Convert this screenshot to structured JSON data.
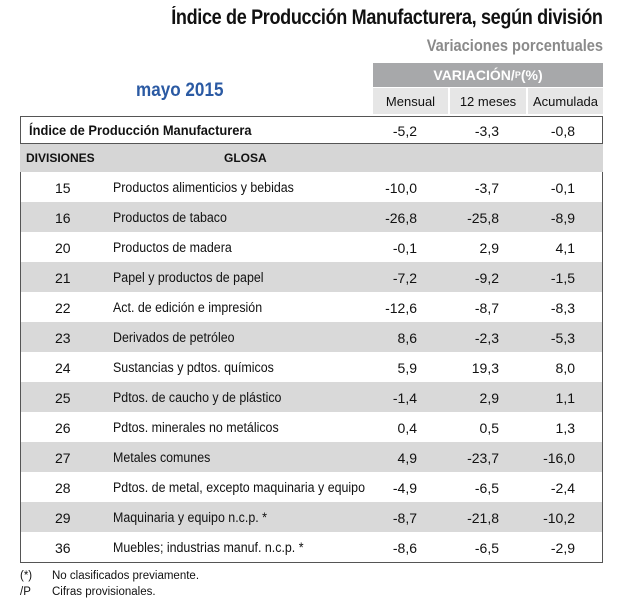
{
  "header": {
    "title": "Índice de Producción Manufacturera, según división",
    "subtitle": "Variaciones porcentuales",
    "period": "mayo 2015",
    "variation_label": "VARIACIÓN/",
    "variation_sup": "P",
    "variation_unit": " (%)",
    "columns": [
      "Mensual",
      "12 meses",
      "Acumulada"
    ]
  },
  "summary": {
    "label": "Índice de Producción Manufacturera",
    "mensual": "-5,2",
    "doce_meses": "-3,3",
    "acumulada": "-0,8"
  },
  "table_header": {
    "divisiones": "DIVISIONES",
    "glosa": "GLOSA"
  },
  "rows": [
    {
      "code": "15",
      "desc": "Productos alimenticios y bebidas",
      "m": "-10,0",
      "a12": "-3,7",
      "ac": "-0,1"
    },
    {
      "code": "16",
      "desc": "Productos de tabaco",
      "m": "-26,8",
      "a12": "-25,8",
      "ac": "-8,9"
    },
    {
      "code": "20",
      "desc": "Productos de madera",
      "m": "-0,1",
      "a12": "2,9",
      "ac": "4,1"
    },
    {
      "code": "21",
      "desc": "Papel y productos de papel",
      "m": "-7,2",
      "a12": "-9,2",
      "ac": "-1,5"
    },
    {
      "code": "22",
      "desc": "Act. de edición e impresión",
      "m": "-12,6",
      "a12": "-8,7",
      "ac": "-8,3"
    },
    {
      "code": "23",
      "desc": "Derivados de petróleo",
      "m": "8,6",
      "a12": "-2,3",
      "ac": "-5,3"
    },
    {
      "code": "24",
      "desc": "Sustancias y pdtos. químicos",
      "m": "5,9",
      "a12": "19,3",
      "ac": "8,0"
    },
    {
      "code": "25",
      "desc": "Pdtos. de caucho y de plástico",
      "m": "-1,4",
      "a12": "2,9",
      "ac": "1,1"
    },
    {
      "code": "26",
      "desc": "Pdtos. minerales no metálicos",
      "m": "0,4",
      "a12": "0,5",
      "ac": "1,3"
    },
    {
      "code": "27",
      "desc": "Metales comunes",
      "m": "4,9",
      "a12": "-23,7",
      "ac": "-16,0"
    },
    {
      "code": "28",
      "desc": "Pdtos. de metal, excepto maquinaria y equipo",
      "m": "-4,9",
      "a12": "-6,5",
      "ac": "-2,4"
    },
    {
      "code": "29",
      "desc": "Maquinaria y equipo n.c.p. *",
      "m": "-8,7",
      "a12": "-21,8",
      "ac": "-10,2"
    },
    {
      "code": "36",
      "desc": "Muebles; industrias manuf. n.c.p. *",
      "m": "-8,6",
      "a12": "-6,5",
      "ac": "-2,9"
    }
  ],
  "notes": [
    {
      "mark": "(*)",
      "text": "No clasificados previamente."
    },
    {
      "mark": "/P",
      "text": "Cifras provisionales."
    }
  ]
}
